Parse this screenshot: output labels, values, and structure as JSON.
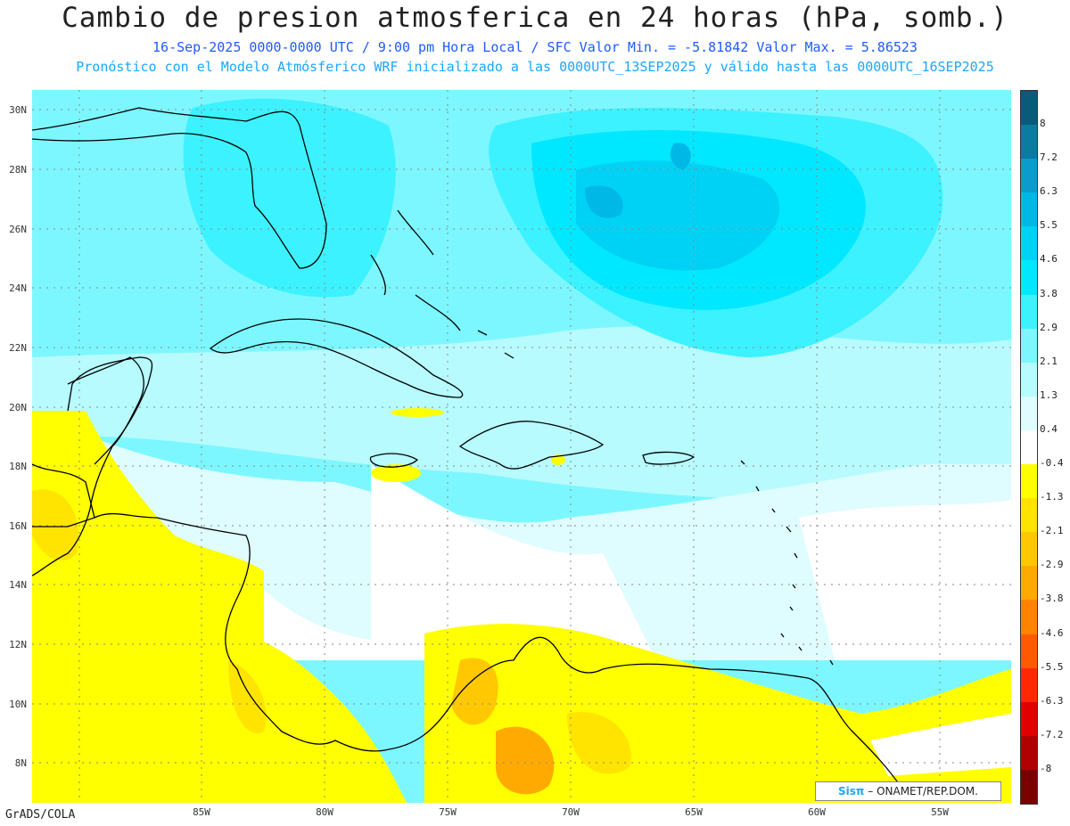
{
  "title": "Cambio de presion atmosferica en 24 horas (hPa, somb.)",
  "subtitle1": "16-Sep-2025   0000-0000 UTC / 9:00 pm Hora Local / SFC    Valor Min. = -5.81842  Valor Max. = 5.86523",
  "subtitle2": "Pronóstico con el Modelo Atmósferico WRF inicializado a las 0000UTC_13SEP2025 y válido hasta las  0000UTC_16SEP2025",
  "lat_labels": [
    "30N",
    "28N",
    "26N",
    "24N",
    "22N",
    "20N",
    "18N",
    "16N",
    "14N",
    "12N",
    "10N",
    "8N"
  ],
  "lon_labels": [
    "85W",
    "80W",
    "75W",
    "70W",
    "65W",
    "60W",
    "55W"
  ],
  "colorbar": [
    {
      "label": "8",
      "color": "#0a5a7a"
    },
    {
      "label": "7.2",
      "color": "#0b7ca0"
    },
    {
      "label": "6.3",
      "color": "#0a9ccc"
    },
    {
      "label": "5.5",
      "color": "#00b8e6"
    },
    {
      "label": "4.6",
      "color": "#00d2f5"
    },
    {
      "label": "3.8",
      "color": "#00e8ff"
    },
    {
      "label": "2.9",
      "color": "#3cf2ff"
    },
    {
      "label": "2.1",
      "color": "#7df7ff"
    },
    {
      "label": "1.3",
      "color": "#b7fbff"
    },
    {
      "label": "0.4",
      "color": "#dffcff"
    },
    {
      "label": "-0.4",
      "color": "#ffffff"
    },
    {
      "label": "-1.3",
      "color": "#ffff00"
    },
    {
      "label": "-2.1",
      "color": "#ffe400"
    },
    {
      "label": "-2.9",
      "color": "#ffc800"
    },
    {
      "label": "-3.8",
      "color": "#ffaa00"
    },
    {
      "label": "-4.6",
      "color": "#ff8200"
    },
    {
      "label": "-5.5",
      "color": "#ff5a00"
    },
    {
      "label": "-6.3",
      "color": "#ff2800"
    },
    {
      "label": "-7.2",
      "color": "#e00000"
    },
    {
      "label": "-8",
      "color": "#b00000"
    },
    {
      "label": "",
      "color": "#7a0000"
    }
  ],
  "footer_left": "GrADS/COLA",
  "logo_sis": "Sisπ",
  "logo_text": "– ONAMET/REP.DOM."
}
